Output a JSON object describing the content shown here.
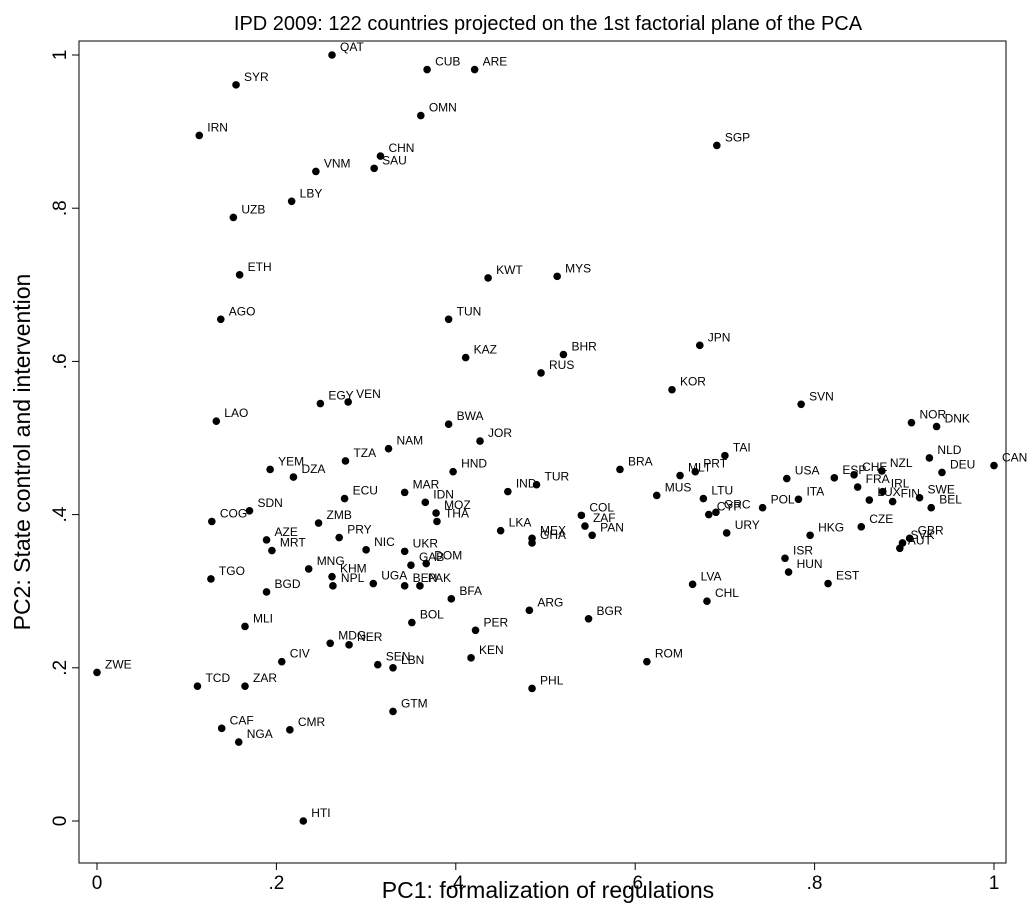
{
  "chart_data": {
    "type": "scatter",
    "title": "IPD 2009: 122 countries projected on the 1st factorial plane of the PCA",
    "xlabel": "PC1: formalization of regulations",
    "ylabel": "PC2: State control and intervention",
    "xlim": [
      0,
      1
    ],
    "ylim": [
      0,
      1
    ],
    "x_ticks": [
      0,
      0.2,
      0.4,
      0.6,
      0.8,
      1
    ],
    "x_tick_labels": [
      "0",
      ".2",
      ".4",
      ".6",
      ".8",
      "1"
    ],
    "y_ticks": [
      0,
      0.2,
      0.4,
      0.6,
      0.8,
      1
    ],
    "y_tick_labels": [
      "0",
      ".2",
      ".4",
      ".6",
      ".8",
      "1"
    ],
    "grid": false,
    "points": [
      {
        "label": "QAT",
        "x": 0.262,
        "y": 1.0
      },
      {
        "label": "CUB",
        "x": 0.368,
        "y": 0.981
      },
      {
        "label": "ARE",
        "x": 0.421,
        "y": 0.981
      },
      {
        "label": "SYR",
        "x": 0.155,
        "y": 0.961
      },
      {
        "label": "OMN",
        "x": 0.361,
        "y": 0.921
      },
      {
        "label": "IRN",
        "x": 0.114,
        "y": 0.895
      },
      {
        "label": "SGP",
        "x": 0.691,
        "y": 0.882
      },
      {
        "label": "CHN",
        "x": 0.316,
        "y": 0.868
      },
      {
        "label": "SAU",
        "x": 0.309,
        "y": 0.852
      },
      {
        "label": "VNM",
        "x": 0.244,
        "y": 0.848
      },
      {
        "label": "LBY",
        "x": 0.217,
        "y": 0.809
      },
      {
        "label": "UZB",
        "x": 0.152,
        "y": 0.788
      },
      {
        "label": "ETH",
        "x": 0.159,
        "y": 0.713
      },
      {
        "label": "KWT",
        "x": 0.436,
        "y": 0.709
      },
      {
        "label": "MYS",
        "x": 0.513,
        "y": 0.711
      },
      {
        "label": "AGO",
        "x": 0.138,
        "y": 0.655
      },
      {
        "label": "TUN",
        "x": 0.392,
        "y": 0.655
      },
      {
        "label": "JPN",
        "x": 0.672,
        "y": 0.621
      },
      {
        "label": "BHR",
        "x": 0.52,
        "y": 0.609
      },
      {
        "label": "KAZ",
        "x": 0.411,
        "y": 0.605
      },
      {
        "label": "RUS",
        "x": 0.495,
        "y": 0.585
      },
      {
        "label": "KOR",
        "x": 0.641,
        "y": 0.563
      },
      {
        "label": "EGY",
        "x": 0.249,
        "y": 0.545
      },
      {
        "label": "VEN",
        "x": 0.28,
        "y": 0.547
      },
      {
        "label": "SVN",
        "x": 0.785,
        "y": 0.544
      },
      {
        "label": "LAO",
        "x": 0.133,
        "y": 0.522
      },
      {
        "label": "NOR",
        "x": 0.908,
        "y": 0.52
      },
      {
        "label": "BWA",
        "x": 0.392,
        "y": 0.518
      },
      {
        "label": "DNK",
        "x": 0.936,
        "y": 0.515
      },
      {
        "label": "JOR",
        "x": 0.427,
        "y": 0.496
      },
      {
        "label": "NAM",
        "x": 0.325,
        "y": 0.486
      },
      {
        "label": "TAI",
        "x": 0.7,
        "y": 0.477
      },
      {
        "label": "NLD",
        "x": 0.928,
        "y": 0.474
      },
      {
        "label": "TZA",
        "x": 0.277,
        "y": 0.47
      },
      {
        "label": "CAN",
        "x": 1.0,
        "y": 0.464
      },
      {
        "label": "YEM",
        "x": 0.193,
        "y": 0.459
      },
      {
        "label": "BRA",
        "x": 0.583,
        "y": 0.459
      },
      {
        "label": "HND",
        "x": 0.397,
        "y": 0.456
      },
      {
        "label": "DEU",
        "x": 0.942,
        "y": 0.455
      },
      {
        "label": "NZL",
        "x": 0.875,
        "y": 0.457
      },
      {
        "label": "CHE",
        "x": 0.844,
        "y": 0.452
      },
      {
        "label": "PRT",
        "x": 0.667,
        "y": 0.456
      },
      {
        "label": "MLT",
        "x": 0.65,
        "y": 0.451
      },
      {
        "label": "DZA",
        "x": 0.219,
        "y": 0.449
      },
      {
        "label": "ESP",
        "x": 0.822,
        "y": 0.448
      },
      {
        "label": "USA",
        "x": 0.769,
        "y": 0.447
      },
      {
        "label": "TUR",
        "x": 0.49,
        "y": 0.439
      },
      {
        "label": "IND",
        "x": 0.458,
        "y": 0.43
      },
      {
        "label": "MAR",
        "x": 0.343,
        "y": 0.429
      },
      {
        "label": "FRA",
        "x": 0.848,
        "y": 0.436
      },
      {
        "label": "IRL",
        "x": 0.876,
        "y": 0.43
      },
      {
        "label": "MUS",
        "x": 0.624,
        "y": 0.425
      },
      {
        "label": "LTU",
        "x": 0.676,
        "y": 0.421
      },
      {
        "label": "ITA",
        "x": 0.782,
        "y": 0.42
      },
      {
        "label": "SWE",
        "x": 0.917,
        "y": 0.422
      },
      {
        "label": "ECU",
        "x": 0.276,
        "y": 0.421
      },
      {
        "label": "LUX",
        "x": 0.861,
        "y": 0.419
      },
      {
        "label": "FIN",
        "x": 0.887,
        "y": 0.417
      },
      {
        "label": "IDN",
        "x": 0.366,
        "y": 0.416
      },
      {
        "label": "MOZ",
        "x": 0.378,
        "y": 0.402
      },
      {
        "label": "CYP",
        "x": 0.682,
        "y": 0.4
      },
      {
        "label": "GRC",
        "x": 0.69,
        "y": 0.403
      },
      {
        "label": "POL",
        "x": 0.742,
        "y": 0.409
      },
      {
        "label": "BEL",
        "x": 0.93,
        "y": 0.409
      },
      {
        "label": "SDN",
        "x": 0.17,
        "y": 0.405
      },
      {
        "label": "COG",
        "x": 0.128,
        "y": 0.391
      },
      {
        "label": "ZMB",
        "x": 0.247,
        "y": 0.389
      },
      {
        "label": "THA",
        "x": 0.379,
        "y": 0.391
      },
      {
        "label": "COL",
        "x": 0.54,
        "y": 0.399
      },
      {
        "label": "ZAF",
        "x": 0.544,
        "y": 0.385
      },
      {
        "label": "LKA",
        "x": 0.45,
        "y": 0.379
      },
      {
        "label": "CZE",
        "x": 0.852,
        "y": 0.384
      },
      {
        "label": "PAN",
        "x": 0.552,
        "y": 0.373
      },
      {
        "label": "HKG",
        "x": 0.795,
        "y": 0.373
      },
      {
        "label": "URY",
        "x": 0.702,
        "y": 0.376
      },
      {
        "label": "MEX",
        "x": 0.485,
        "y": 0.369
      },
      {
        "label": "GHA",
        "x": 0.485,
        "y": 0.363
      },
      {
        "label": "AZE",
        "x": 0.189,
        "y": 0.367
      },
      {
        "label": "PRY",
        "x": 0.27,
        "y": 0.37
      },
      {
        "label": "GBR",
        "x": 0.906,
        "y": 0.369
      },
      {
        "label": "SVK",
        "x": 0.898,
        "y": 0.363
      },
      {
        "label": "AUT",
        "x": 0.895,
        "y": 0.356
      },
      {
        "label": "NIC",
        "x": 0.3,
        "y": 0.354
      },
      {
        "label": "UKR",
        "x": 0.343,
        "y": 0.352
      },
      {
        "label": "MRT",
        "x": 0.195,
        "y": 0.353
      },
      {
        "label": "ISR",
        "x": 0.767,
        "y": 0.343
      },
      {
        "label": "GAB",
        "x": 0.35,
        "y": 0.334
      },
      {
        "label": "DOM",
        "x": 0.367,
        "y": 0.336
      },
      {
        "label": "MNG",
        "x": 0.236,
        "y": 0.329
      },
      {
        "label": "KHM",
        "x": 0.262,
        "y": 0.319
      },
      {
        "label": "HUN",
        "x": 0.771,
        "y": 0.325
      },
      {
        "label": "TGO",
        "x": 0.127,
        "y": 0.316
      },
      {
        "label": "NPL",
        "x": 0.263,
        "y": 0.307
      },
      {
        "label": "UGA",
        "x": 0.308,
        "y": 0.31
      },
      {
        "label": "BEN",
        "x": 0.343,
        "y": 0.307
      },
      {
        "label": "PAK",
        "x": 0.36,
        "y": 0.307
      },
      {
        "label": "EST",
        "x": 0.815,
        "y": 0.31
      },
      {
        "label": "LVA",
        "x": 0.664,
        "y": 0.309
      },
      {
        "label": "BGD",
        "x": 0.189,
        "y": 0.299
      },
      {
        "label": "BFA",
        "x": 0.395,
        "y": 0.29
      },
      {
        "label": "CHL",
        "x": 0.68,
        "y": 0.287
      },
      {
        "label": "ARG",
        "x": 0.482,
        "y": 0.275
      },
      {
        "label": "BGR",
        "x": 0.548,
        "y": 0.264
      },
      {
        "label": "BOL",
        "x": 0.351,
        "y": 0.259
      },
      {
        "label": "MLI",
        "x": 0.165,
        "y": 0.254
      },
      {
        "label": "PER",
        "x": 0.422,
        "y": 0.249
      },
      {
        "label": "MDG",
        "x": 0.26,
        "y": 0.232
      },
      {
        "label": "NER",
        "x": 0.281,
        "y": 0.23
      },
      {
        "label": "CIV",
        "x": 0.206,
        "y": 0.208
      },
      {
        "label": "ROM",
        "x": 0.613,
        "y": 0.208
      },
      {
        "label": "KEN",
        "x": 0.417,
        "y": 0.213
      },
      {
        "label": "SEN",
        "x": 0.313,
        "y": 0.204
      },
      {
        "label": "LBN",
        "x": 0.33,
        "y": 0.2
      },
      {
        "label": "ZWE",
        "x": 0.0,
        "y": 0.194
      },
      {
        "label": "TCD",
        "x": 0.112,
        "y": 0.176
      },
      {
        "label": "ZAR",
        "x": 0.165,
        "y": 0.176
      },
      {
        "label": "PHL",
        "x": 0.485,
        "y": 0.173
      },
      {
        "label": "GTM",
        "x": 0.33,
        "y": 0.143
      },
      {
        "label": "CAF",
        "x": 0.139,
        "y": 0.121
      },
      {
        "label": "CMR",
        "x": 0.215,
        "y": 0.119
      },
      {
        "label": "NGA",
        "x": 0.158,
        "y": 0.103
      },
      {
        "label": "HTI",
        "x": 0.23,
        "y": 0.0
      }
    ]
  }
}
